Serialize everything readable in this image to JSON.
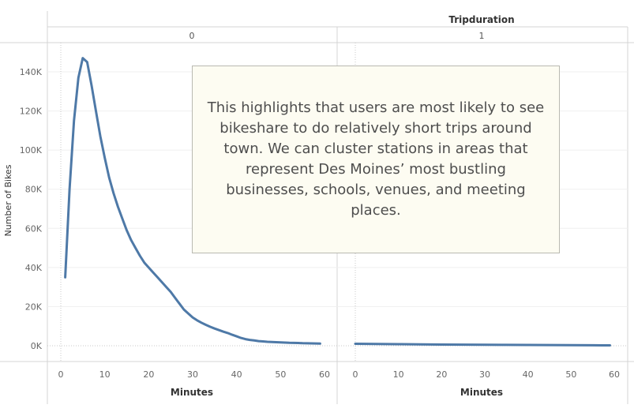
{
  "chart_data": {
    "type": "line",
    "header_title": "Tripduration",
    "ylabel": "Number of Bikes",
    "yticks": [
      "0K",
      "20K",
      "40K",
      "60K",
      "80K",
      "100K",
      "120K",
      "140K"
    ],
    "ylim": [
      0,
      150000
    ],
    "line_color": "#4e79a7",
    "grid": true,
    "panels": [
      {
        "header": "0",
        "xlabel": "Minutes",
        "xticks": [
          "0",
          "10",
          "20",
          "30",
          "40",
          "50",
          "60"
        ],
        "xlim": [
          0,
          60
        ],
        "series": [
          {
            "x": [
              1,
              2,
              3,
              4,
              5,
              6,
              7,
              8,
              9,
              10,
              11,
              12,
              13,
              14,
              15,
              16,
              17,
              18,
              19,
              20,
              21,
              22,
              23,
              24,
              25,
              26,
              27,
              28,
              29,
              30,
              31,
              32,
              33,
              34,
              35,
              36,
              37,
              38,
              39,
              40,
              41,
              42,
              43,
              44,
              45,
              46,
              47,
              48,
              49,
              50,
              51,
              52,
              53,
              54,
              55,
              56,
              57,
              58,
              59
            ],
            "y": [
              35000,
              80000,
              115000,
              137000,
              147000,
              145000,
              133000,
              120000,
              107000,
              96000,
              86000,
              78000,
              71000,
              65000,
              59000,
              54000,
              50000,
              46000,
              42500,
              40000,
              37500,
              35000,
              32500,
              30000,
              27500,
              24500,
              21500,
              18500,
              16500,
              14500,
              13000,
              11800,
              10700,
              9700,
              8800,
              8000,
              7200,
              6500,
              5600,
              4800,
              4000,
              3400,
              3000,
              2700,
              2400,
              2200,
              2000,
              1900,
              1800,
              1700,
              1600,
              1500,
              1450,
              1400,
              1300,
              1250,
              1200,
              1150,
              1100
            ]
          }
        ]
      },
      {
        "header": "1",
        "xlabel": "Minutes",
        "xticks": [
          "0",
          "10",
          "20",
          "30",
          "40",
          "50",
          "60"
        ],
        "xlim": [
          0,
          60
        ],
        "series": [
          {
            "x": [
              0,
              5,
              10,
              15,
              20,
              25,
              30,
              35,
              40,
              45,
              50,
              55,
              59
            ],
            "y": [
              1000,
              900,
              800,
              700,
              600,
              550,
              500,
              450,
              400,
              350,
              300,
              250,
              200
            ]
          }
        ]
      }
    ]
  },
  "annotation": {
    "text": "This highlights that users are most likely to see bikeshare to do relatively short trips around town. We can cluster stations in areas that represent Des Moines’ most bustling businesses, schools, venues, and meeting places."
  }
}
